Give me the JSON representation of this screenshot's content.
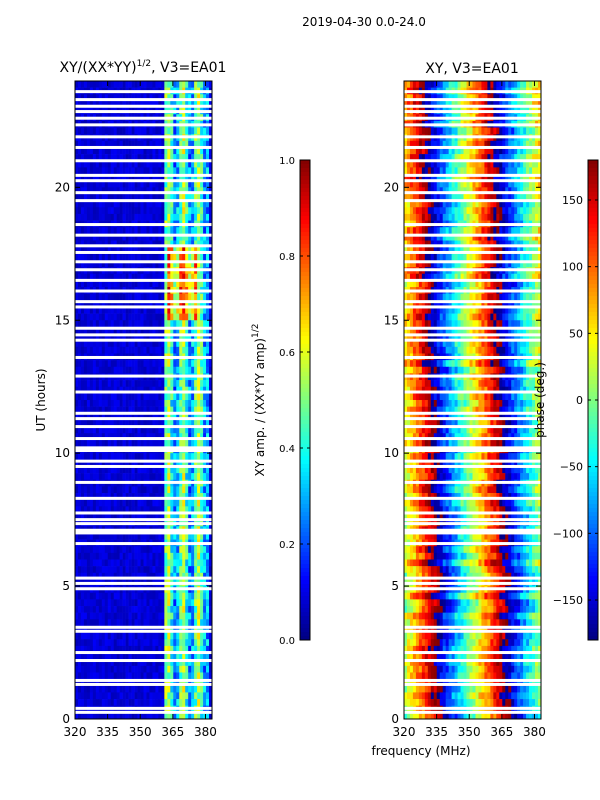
{
  "figure": {
    "suptitle": "2019-04-30 0.0-24.0",
    "xlabel_shared": "frequency (MHz)"
  },
  "chart_data": [
    {
      "type": "heatmap",
      "title_main": "XY/(XX*YY)",
      "title_sup": "1/2",
      "title_tail": ", V3=EA01",
      "xlabel": "",
      "ylabel": "UT (hours)",
      "xlim": [
        320,
        383
      ],
      "ylim": [
        0,
        24
      ],
      "xticks": [
        320,
        335,
        350,
        365,
        380
      ],
      "yticks": [
        0,
        5,
        10,
        15,
        20
      ],
      "colormap": "jet",
      "colorbar": {
        "label_main": "XY amp. / (XX*YY amp)",
        "label_sup": "1/2",
        "range": [
          0.0,
          1.0
        ],
        "ticks": [
          "0.0",
          "0.2",
          "0.4",
          "0.6",
          "0.8",
          "1.0"
        ],
        "tick_values": [
          0.0,
          0.2,
          0.4,
          0.6,
          0.8,
          1.0
        ]
      },
      "flagged_time_gaps_hours": [
        0.25,
        0.4,
        1.3,
        1.45,
        2.2,
        2.5,
        3.3,
        3.45,
        4.9,
        5.1,
        5.3,
        6.6,
        7.0,
        7.1,
        7.35,
        7.5,
        7.75,
        8.3,
        8.9,
        9.5,
        9.7,
        10.1,
        10.2,
        10.55,
        11.0,
        11.3,
        11.5,
        12.3,
        12.9,
        13.6,
        14.25,
        14.45,
        14.7,
        15.5,
        15.7,
        16.1,
        16.5,
        16.9,
        17.2,
        17.55,
        17.8,
        18.2,
        18.6,
        19.5,
        19.8,
        20.25,
        20.45,
        21.0,
        21.5,
        21.9,
        22.35,
        22.6,
        22.85,
        23.05,
        23.3,
        23.6
      ],
      "bright_frequency_band_MHz": [
        361,
        382
      ],
      "background_level": 0.05,
      "band_level": 0.4
    },
    {
      "type": "heatmap",
      "title": "XY, V3=EA01",
      "xlabel": "frequency (MHz)",
      "ylabel": "",
      "xlim": [
        320,
        383
      ],
      "ylim": [
        0,
        24
      ],
      "xticks": [
        320,
        335,
        350,
        365,
        380
      ],
      "yticks": [
        0,
        5,
        10,
        15,
        20
      ],
      "colormap": "jet",
      "colorbar": {
        "label": "phase (deg.)",
        "range": [
          -180,
          180
        ],
        "ticks": [
          "150",
          "100",
          "50",
          "0",
          "−50",
          "−100",
          "−150"
        ],
        "tick_values": [
          150,
          100,
          50,
          0,
          -50,
          -100,
          -150
        ]
      },
      "flagged_time_gaps_hours": [
        0.25,
        0.4,
        1.3,
        1.45,
        2.2,
        2.5,
        3.3,
        3.45,
        4.9,
        5.1,
        5.3,
        6.6,
        7.0,
        7.1,
        7.35,
        7.5,
        7.75,
        8.3,
        8.9,
        9.5,
        9.7,
        10.1,
        10.2,
        10.55,
        11.0,
        11.3,
        11.5,
        12.3,
        12.9,
        13.6,
        14.25,
        14.45,
        14.7,
        15.5,
        15.7,
        16.1,
        16.5,
        16.9,
        17.2,
        17.55,
        17.8,
        18.2,
        18.6,
        19.5,
        19.8,
        20.25,
        20.45,
        21.0,
        21.5,
        21.9,
        22.35,
        22.6,
        22.85,
        23.05,
        23.3,
        23.6
      ],
      "phase_slope_deg_per_MHz": 11.4
    }
  ]
}
